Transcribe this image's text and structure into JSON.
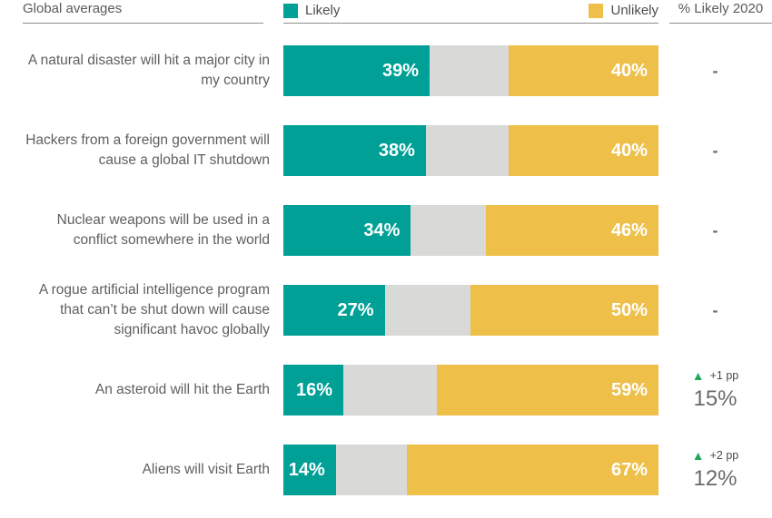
{
  "header": {
    "left_label": "Global averages",
    "legend_likely": "Likely",
    "legend_unlikely": "Unlikely",
    "right_label": "% Likely 2020"
  },
  "colors": {
    "likely": "#00a096",
    "unlikely": "#eec04a",
    "neutral": "#d9d9d7",
    "change_up": "#1fa95c"
  },
  "rows": [
    {
      "label": "A natural disaster will hit a major city in my country",
      "likely": 39,
      "neutral": 21,
      "unlikely": 40,
      "likely_label": "39%",
      "unlikely_label": "40%",
      "prev": "-"
    },
    {
      "label": "Hackers from a foreign government will cause a global IT shutdown",
      "likely": 38,
      "neutral": 22,
      "unlikely": 40,
      "likely_label": "38%",
      "unlikely_label": "40%",
      "prev": "-"
    },
    {
      "label": "Nuclear weapons will be used in a conflict somewhere in the world",
      "likely": 34,
      "neutral": 20,
      "unlikely": 46,
      "likely_label": "34%",
      "unlikely_label": "46%",
      "prev": "-"
    },
    {
      "label": "A rogue artificial intelligence program that can’t be shut down will cause significant havoc globally",
      "likely": 27,
      "neutral": 23,
      "unlikely": 50,
      "likely_label": "27%",
      "unlikely_label": "50%",
      "prev": "-"
    },
    {
      "label": "An asteroid will hit the Earth",
      "likely": 16,
      "neutral": 25,
      "unlikely": 59,
      "likely_label": "16%",
      "unlikely_label": "59%",
      "change": "+1 pp",
      "prev": "15%"
    },
    {
      "label": "Aliens will visit Earth",
      "likely": 14,
      "neutral": 19,
      "unlikely": 67,
      "likely_label": "14%",
      "unlikely_label": "67%",
      "change": "+2 pp",
      "prev": "12%"
    }
  ],
  "chart_data": {
    "type": "bar",
    "orientation": "horizontal",
    "stacked": true,
    "unit": "%",
    "title": "Global averages",
    "categories": [
      "A natural disaster will hit a major city in my country",
      "Hackers from a foreign government will cause a global IT shutdown",
      "Nuclear weapons will be used in a conflict somewhere in the world",
      "A rogue artificial intelligence program that can’t be shut down will cause significant havoc globally",
      "An asteroid will hit the Earth",
      "Aliens will visit Earth"
    ],
    "series": [
      {
        "name": "Likely",
        "color": "#00a096",
        "values": [
          39,
          38,
          34,
          27,
          16,
          14
        ]
      },
      {
        "name": "Neutral (unlabeled)",
        "color": "#d9d9d7",
        "values": [
          21,
          22,
          20,
          23,
          25,
          19
        ]
      },
      {
        "name": "Unlikely",
        "color": "#eec04a",
        "values": [
          40,
          40,
          46,
          50,
          59,
          67
        ]
      }
    ],
    "extra_column": {
      "header": "% Likely 2020",
      "values": [
        "-",
        "-",
        "-",
        "-",
        "15%",
        "12%"
      ],
      "changes": [
        null,
        null,
        null,
        null,
        "+1 pp",
        "+2 pp"
      ]
    },
    "xlim": [
      0,
      100
    ],
    "legend_position": "top",
    "value_labels": "inside-end",
    "grid": false
  }
}
